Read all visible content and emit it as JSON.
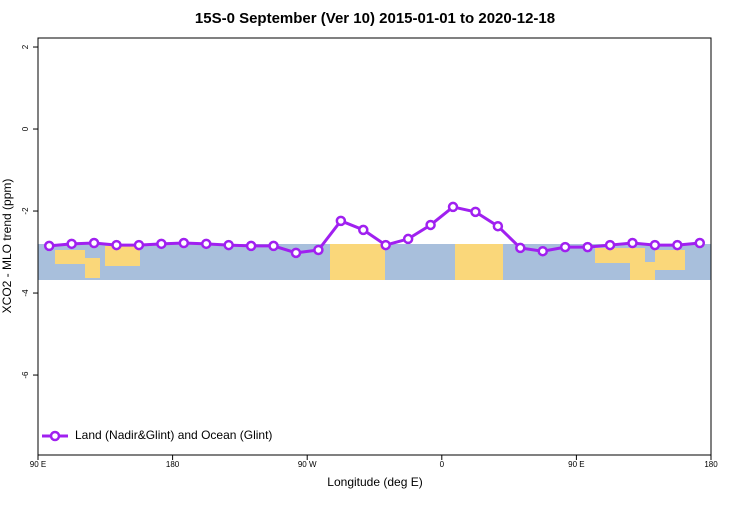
{
  "chart_data": {
    "type": "line",
    "title": "15S-0 September (Ver 10)   2015-01-01 to 2020-12-18",
    "xlabel": "Longitude (deg E)",
    "ylabel": "XCO2 - MLO trend (ppm)",
    "x": [
      97.5,
      112.5,
      127.5,
      142.5,
      157.5,
      172.5,
      187.5,
      202.5,
      217.5,
      232.5,
      247.5,
      262.5,
      277.5,
      292.5,
      307.5,
      322.5,
      337.5,
      352.5,
      367.5,
      382.5,
      397.5,
      412.5,
      427.5,
      442.5,
      457.5,
      472.5,
      487.5,
      502.5,
      517.5,
      532.5
    ],
    "series": [
      {
        "name": "Land (Nadir&Glint) and Ocean (Glint)",
        "color": "#a020f0",
        "values": [
          -2.85,
          -2.8,
          -2.78,
          -2.83,
          -2.83,
          -2.8,
          -2.78,
          -2.8,
          -2.83,
          -2.85,
          -2.85,
          -3.02,
          -2.95,
          -2.24,
          -2.46,
          -2.83,
          -2.68,
          -2.34,
          -1.9,
          -2.02,
          -2.37,
          -2.9,
          -2.98,
          -2.88,
          -2.88,
          -2.83,
          -2.78,
          -2.83,
          -2.83,
          -2.78
        ]
      }
    ],
    "xlim": [
      90,
      540
    ],
    "xticks": [
      {
        "value": 90,
        "label": "90 E"
      },
      180,
      {
        "value": 270,
        "label": "90 W"
      },
      {
        "value": 360,
        "label": "0"
      },
      {
        "value": 450,
        "label": "90 E"
      },
      {
        "value": 540,
        "label": "180"
      }
    ],
    "ylim": [
      -7.95,
      2.22
    ],
    "yticks": [
      -6,
      -4,
      -2,
      0,
      2
    ],
    "legend": "bottom-left"
  }
}
